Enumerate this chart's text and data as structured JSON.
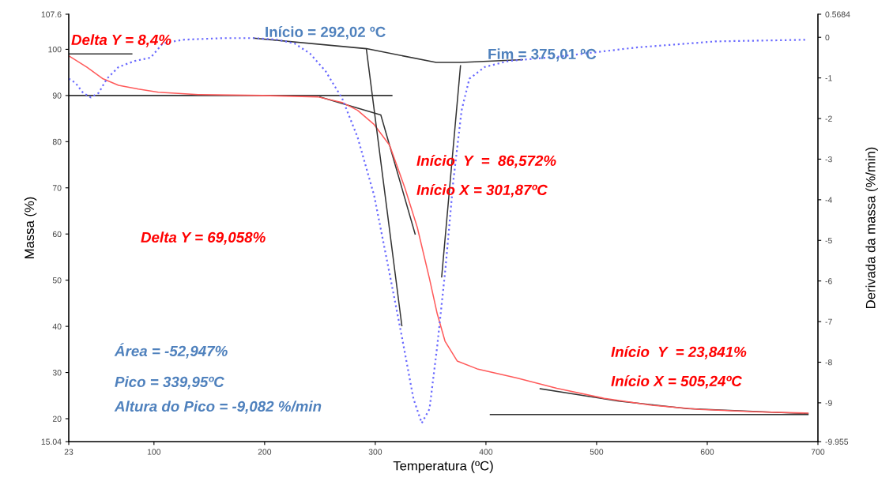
{
  "chart_data": {
    "type": "line",
    "xlabel": "Temperatura (ºC)",
    "ylabel": "Massa (%)",
    "y2label": "Derivada da massa (%/min)",
    "xlim": [
      23,
      700
    ],
    "xticks": [
      23,
      100,
      200,
      300,
      400,
      500,
      600,
      700
    ],
    "ylim": [
      15.04,
      107.6
    ],
    "yticks": [
      15.04,
      20,
      30,
      40,
      50,
      60,
      70,
      80,
      90,
      100,
      107.6
    ],
    "y2lim": [
      -9.955,
      0.5684
    ],
    "y2ticks": [
      -9.955,
      -9,
      -8,
      -7,
      -6,
      -5,
      -4,
      -3,
      -2,
      -1,
      0,
      0.5684
    ],
    "grid": false,
    "marker": "none",
    "series": [
      {
        "color": "#ff5a5a",
        "line_style": "solid",
        "x": [
          23,
          39.5,
          54,
          68,
          86,
          104,
          140,
          198,
          248,
          270,
          284,
          299,
          313,
          327,
          338,
          349,
          356,
          363,
          374,
          392,
          428,
          464,
          507,
          550,
          593,
          644,
          691
        ],
        "values": [
          98.6,
          96.1,
          93.6,
          92.2,
          91.4,
          90.7,
          90.2,
          90.0,
          89.7,
          88.5,
          86.8,
          83.7,
          79.2,
          69.8,
          61.4,
          50.3,
          42.7,
          36.8,
          32.5,
          30.8,
          28.8,
          26.6,
          24.4,
          22.9,
          22.0,
          21.5,
          21.2
        ]
      },
      {
        "color": "#6a6aff",
        "line_style": "dotted",
        "axis": "y2",
        "x": [
          23,
          29,
          36,
          43,
          50,
          57.5,
          68,
          83,
          97,
          108,
          126,
          162,
          191,
          212,
          227,
          241,
          255,
          270,
          284,
          299,
          313,
          324,
          334.5,
          342,
          349,
          356,
          363.5,
          370.5,
          378,
          385,
          399,
          421,
          464,
          536,
          608,
          691
        ],
        "values": [
          -1.02,
          -1.12,
          -1.37,
          -1.48,
          -1.37,
          -1.02,
          -0.73,
          -0.58,
          -0.5,
          -0.15,
          -0.06,
          -0.02,
          -0.02,
          -0.06,
          -0.15,
          -0.4,
          -0.83,
          -1.5,
          -2.46,
          -3.9,
          -5.83,
          -7.37,
          -8.9,
          -9.5,
          -9.15,
          -7.6,
          -5.67,
          -3.54,
          -1.8,
          -1.02,
          -0.73,
          -0.58,
          -0.48,
          -0.25,
          -0.1,
          -0.06
        ]
      },
      {
        "color": "#333333",
        "line_style": "solid",
        "x": [
          23,
          80
        ],
        "values": [
          99,
          99
        ]
      },
      {
        "color": "#333333",
        "line_style": "solid",
        "x": [
          23,
          315
        ],
        "values": [
          90,
          90
        ]
      },
      {
        "color": "#333333",
        "line_style": "solid",
        "x": [
          250,
          305,
          336
        ],
        "values": [
          89.7,
          85.8,
          60
        ]
      },
      {
        "color": "#333333",
        "line_style": "solid",
        "x": [
          404,
          691
        ],
        "values": [
          20.9,
          20.9
        ]
      },
      {
        "color": "#333333",
        "line_style": "solid",
        "x": [
          449,
          520,
          582,
          691
        ],
        "values": [
          26.5,
          23.8,
          22.2,
          21.1
        ]
      },
      {
        "color": "#333333",
        "line_style": "solid",
        "axis": "y2",
        "x": [
          190,
          292,
          355,
          378,
          433
        ],
        "values": [
          -0.02,
          -0.28,
          -0.62,
          -0.62,
          -0.55
        ]
      },
      {
        "color": "#333333",
        "line_style": "solid",
        "axis": "y2",
        "x": [
          292,
          324
        ],
        "values": [
          -0.3,
          -7.1
        ]
      },
      {
        "color": "#333333",
        "line_style": "solid",
        "axis": "y2",
        "x": [
          360,
          377
        ],
        "values": [
          -5.9,
          -0.7
        ]
      }
    ],
    "annotations": [
      "Delta Y = 8,4%",
      "Início = 292,02 ºC",
      "Fim = 375,01 ºC",
      "Início  Y  =  86,572%",
      "Início X = 301,87ºC",
      "Delta Y = 69,058%",
      "Área = -52,947%",
      "Pico = 339,95ºC",
      "Altura do Pico = -9,082 %/min",
      "Início  Y  = 23,841%",
      "Início X = 505,24ºC"
    ]
  }
}
